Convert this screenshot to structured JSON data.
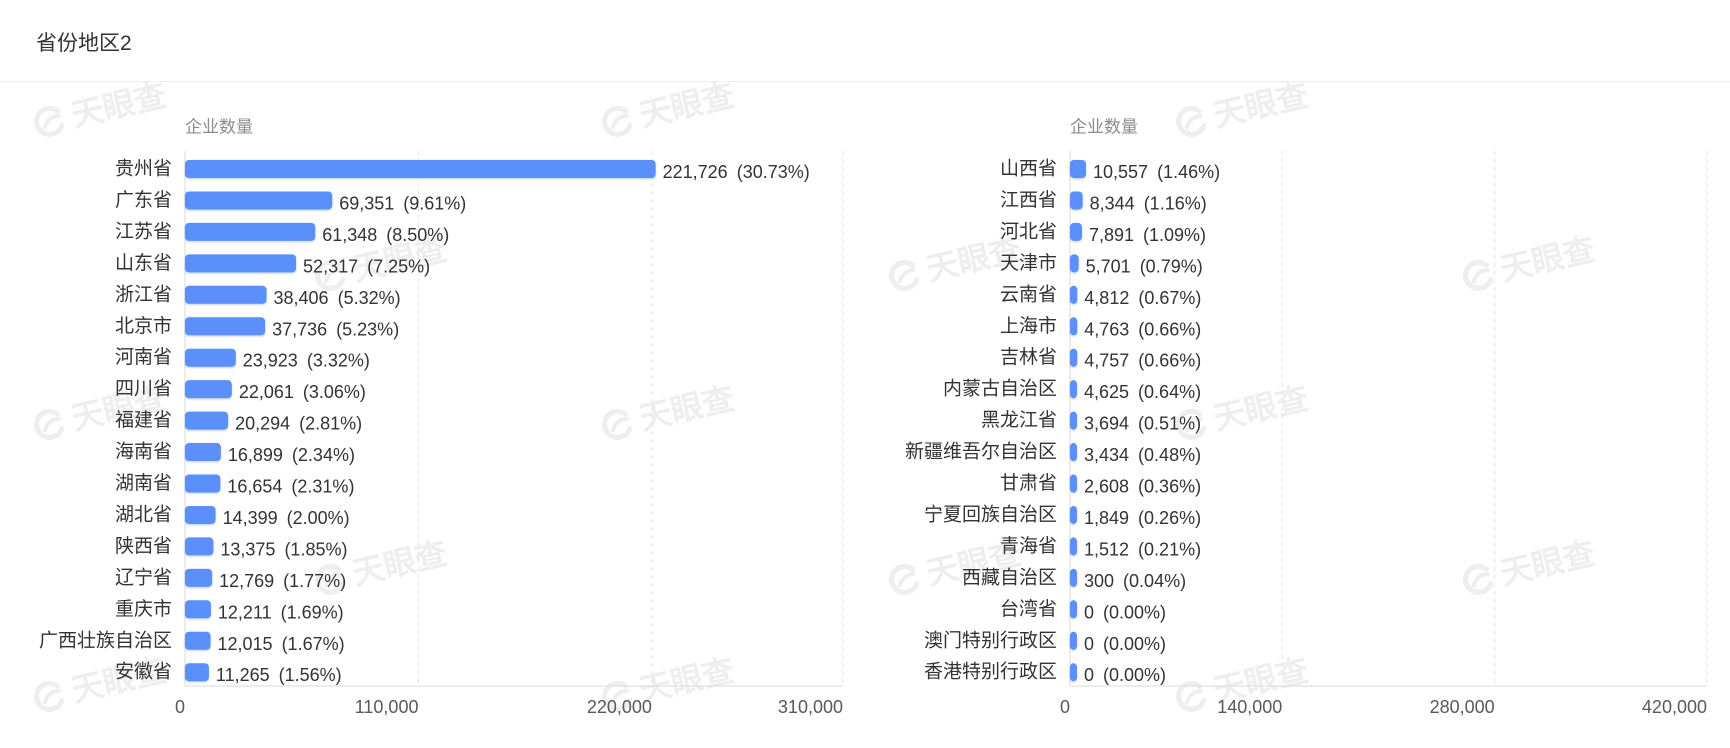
{
  "header": {
    "title": "省份地区2"
  },
  "watermark": "天眼查",
  "colors": {
    "bar": "#5b8ff9",
    "grid": "#e3e3e3"
  },
  "chart_data": [
    {
      "type": "bar",
      "orientation": "horizontal",
      "value_axis_title": "企业数量",
      "categories": [
        "贵州省",
        "广东省",
        "江苏省",
        "山东省",
        "浙江省",
        "北京市",
        "河南省",
        "四川省",
        "福建省",
        "海南省",
        "湖南省",
        "湖北省",
        "陕西省",
        "辽宁省",
        "重庆市",
        "广西壮族自治区",
        "安徽省"
      ],
      "values": [
        221726,
        69351,
        61348,
        52317,
        38406,
        37736,
        23923,
        22061,
        20294,
        16899,
        16654,
        14399,
        13375,
        12769,
        12211,
        12015,
        11265
      ],
      "percentages": [
        30.73,
        9.61,
        8.5,
        7.25,
        5.32,
        5.23,
        3.32,
        3.06,
        2.81,
        2.34,
        2.31,
        2.0,
        1.85,
        1.77,
        1.69,
        1.67,
        1.56
      ],
      "xlim": [
        0,
        310000
      ],
      "ticks": [
        0,
        110000,
        220000,
        310000
      ],
      "tick_labels": [
        "0",
        "110,000",
        "220,000",
        "310,000"
      ],
      "grid": true,
      "legend": false
    },
    {
      "type": "bar",
      "orientation": "horizontal",
      "value_axis_title": "企业数量",
      "categories": [
        "山西省",
        "江西省",
        "河北省",
        "天津市",
        "云南省",
        "上海市",
        "吉林省",
        "内蒙古自治区",
        "黑龙江省",
        "新疆维吾尔自治区",
        "甘肃省",
        "宁夏回族自治区",
        "青海省",
        "西藏自治区",
        "台湾省",
        "澳门特别行政区",
        "香港特别行政区"
      ],
      "values": [
        10557,
        8344,
        7891,
        5701,
        4812,
        4763,
        4757,
        4625,
        3694,
        3434,
        2608,
        1849,
        1512,
        300,
        0,
        0,
        0
      ],
      "percentages": [
        1.46,
        1.16,
        1.09,
        0.79,
        0.67,
        0.66,
        0.66,
        0.64,
        0.51,
        0.48,
        0.36,
        0.26,
        0.21,
        0.04,
        0.0,
        0.0,
        0.0
      ],
      "xlim": [
        0,
        420000
      ],
      "ticks": [
        0,
        140000,
        280000,
        420000
      ],
      "tick_labels": [
        "0",
        "140,000",
        "280,000",
        "420,000"
      ],
      "grid": true,
      "legend": false
    }
  ]
}
